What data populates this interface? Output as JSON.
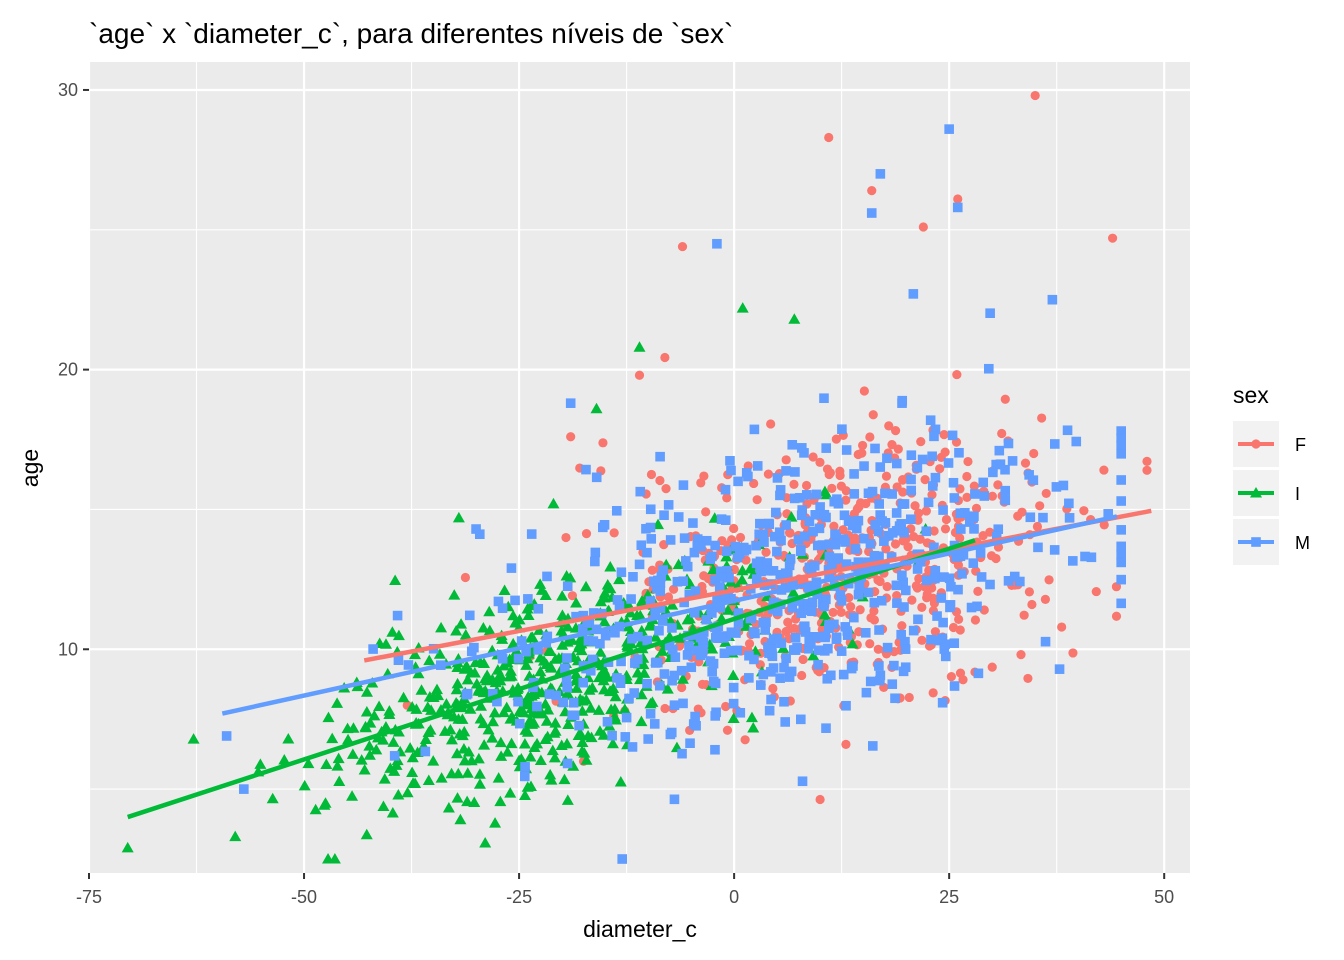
{
  "chart_data": {
    "type": "scatter",
    "title": "`age` x `diameter_c`, para diferentes níveis de `sex`",
    "xlabel": "diameter_c",
    "ylabel": "age",
    "xlim": [
      -75,
      53
    ],
    "ylim": [
      2,
      31
    ],
    "x_ticks": [
      -75,
      -50,
      -25,
      0,
      25,
      50
    ],
    "x_tick_labels": [
      "-75",
      "-50",
      "-25",
      "0",
      "25",
      "50"
    ],
    "y_ticks": [
      10,
      20,
      30
    ],
    "y_tick_labels": [
      "10",
      "20",
      "30"
    ],
    "grid": true,
    "legend": {
      "title": "sex",
      "position": "right",
      "entries": [
        "F",
        "I",
        "M"
      ]
    },
    "series": [
      {
        "name": "F",
        "color": "#F8766D",
        "marker": "circle",
        "x_range": [
          -43,
          48
        ],
        "y_center": 12.5,
        "n": 520,
        "trend_line": {
          "x": [
            -43,
            48.5
          ],
          "y": [
            9.6,
            14.95
          ]
        },
        "outliers": [
          {
            "x": 35,
            "y": 29.8
          },
          {
            "x": 11,
            "y": 28.3
          },
          {
            "x": 26,
            "y": 26.1
          },
          {
            "x": 44,
            "y": 24.7
          },
          {
            "x": 22,
            "y": 25.1
          },
          {
            "x": -6,
            "y": 24.4
          },
          {
            "x": 48,
            "y": 16.4
          },
          {
            "x": 16,
            "y": 26.4
          },
          {
            "x": 13,
            "y": 6.6
          },
          {
            "x": -38,
            "y": 8.0
          },
          {
            "x": -19,
            "y": 17.6
          },
          {
            "x": -11,
            "y": 19.8
          }
        ]
      },
      {
        "name": "I",
        "color": "#00BA38",
        "marker": "triangle",
        "x_range": [
          -71,
          28
        ],
        "y_center": 8.0,
        "n": 560,
        "trend_line": {
          "x": [
            -70.5,
            28
          ],
          "y": [
            4.0,
            13.9
          ]
        },
        "outliers": [
          {
            "x": -70.5,
            "y": 2.9
          },
          {
            "x": -58,
            "y": 3.3
          },
          {
            "x": 1,
            "y": 22.2
          },
          {
            "x": -16,
            "y": 18.6
          },
          {
            "x": -11,
            "y": 20.8
          },
          {
            "x": 7,
            "y": 21.8
          },
          {
            "x": -32,
            "y": 14.7
          },
          {
            "x": -21,
            "y": 15.2
          }
        ]
      },
      {
        "name": "M",
        "color": "#619CFF",
        "marker": "square",
        "x_range": [
          -59,
          45
        ],
        "y_center": 12.0,
        "n": 620,
        "trend_line": {
          "x": [
            -59.5,
            44.5
          ],
          "y": [
            7.7,
            14.75
          ]
        },
        "outliers": [
          {
            "x": 25,
            "y": 28.6
          },
          {
            "x": 17,
            "y": 27.0
          },
          {
            "x": 26,
            "y": 25.8
          },
          {
            "x": 16,
            "y": 25.6
          },
          {
            "x": -2,
            "y": 24.5
          },
          {
            "x": 37,
            "y": 22.5
          },
          {
            "x": -19,
            "y": 18.8
          },
          {
            "x": -57,
            "y": 5.0
          },
          {
            "x": -59,
            "y": 6.9
          },
          {
            "x": -30,
            "y": 14.3
          },
          {
            "x": 39,
            "y": 14.7
          }
        ]
      }
    ]
  }
}
